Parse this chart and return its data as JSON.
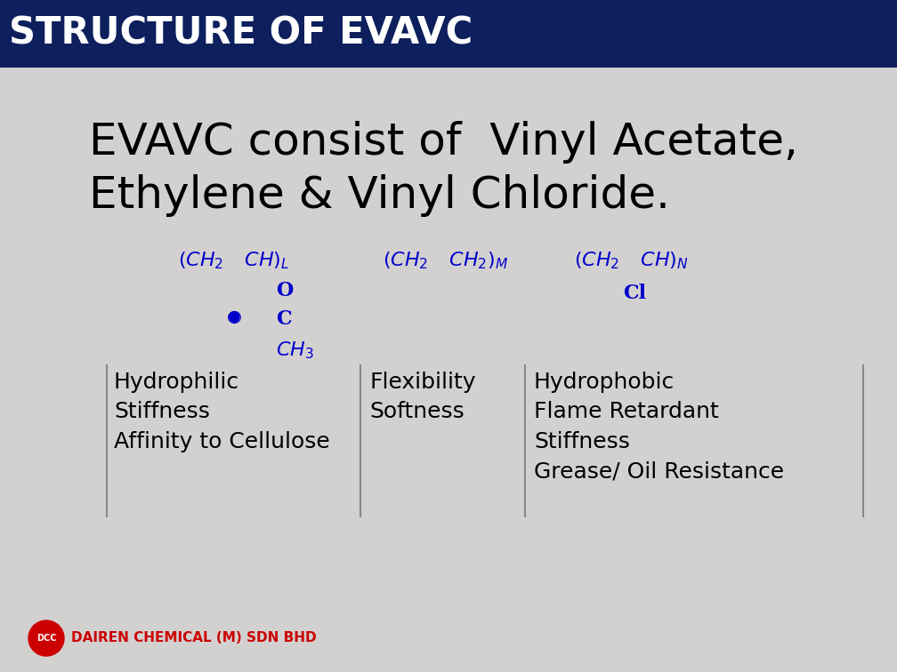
{
  "title": "STRUCTURE OF EVAVC",
  "title_bg": "#0d1f5c",
  "title_color": "#ffffff",
  "title_fontsize": 30,
  "bg_color": "#d3d0d0",
  "body_line1": "EVAVC consist of  Vinyl Acetate,",
  "body_line2": "Ethylene & Vinyl Chloride.",
  "body_fontsize": 36,
  "body_color": "#000000",
  "chem_color": "#0000cc",
  "chem_fontsize": 16,
  "col1_title": "Hydrophilic\nStiffness\nAffinity to Cellulose",
  "col2_title": "Flexibility\nSoftness",
  "col3_title": "Hydrophobic\nFlame Retardant\nStiffness\nGrease/ Oil Resistance",
  "col_fontsize": 18,
  "footer_logo_color": "#cc0000",
  "footer_text": "DAIREN CHEMICAL (M) SDN BHD",
  "footer_color": "#cc0000",
  "footer_fontsize": 11
}
